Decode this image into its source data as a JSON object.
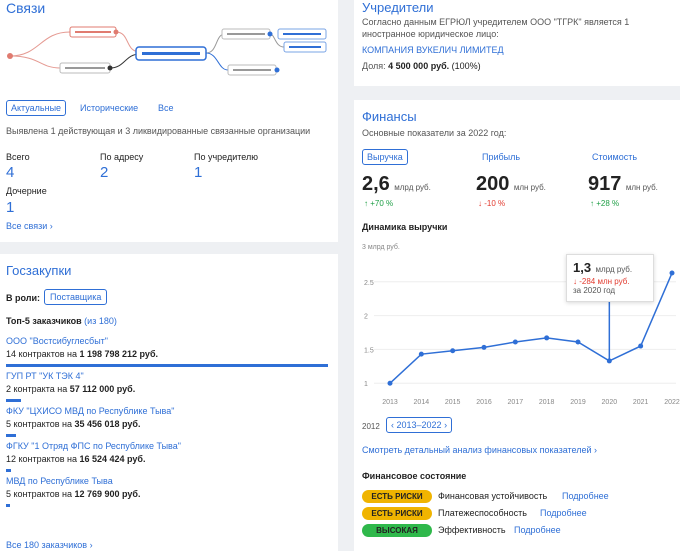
{
  "links": {
    "title": "Связи",
    "tabs": [
      "Актуальные",
      "Исторические",
      "Все"
    ],
    "summary": "Выявлена 1 действующая и 3 ликвидированные связанные организации",
    "stats": [
      {
        "label": "Всего",
        "value": "4"
      },
      {
        "label": "По адресу",
        "value": "2"
      },
      {
        "label": "По учредителю",
        "value": "1"
      },
      {
        "label": "Дочерние",
        "value": "1"
      }
    ],
    "all_link": "Все связи ›"
  },
  "founders": {
    "title": "Учредители",
    "text1": "Согласно данным ЕГРЮЛ учредителем ООО \"ТГРК\" является 1",
    "text2": "иностранное юридическое лицо:",
    "company": "КОМПАНИЯ ВУКЕЛИЧ ЛИМИТЕД",
    "share_label": "Доля:",
    "share_value": "4 500 000 руб.",
    "share_pct": "(100%)"
  },
  "finance": {
    "title": "Финансы",
    "subtitle": "Основные показатели за 2022 год:",
    "tabs": [
      "Выручка",
      "Прибыль",
      "Стоимость"
    ],
    "metrics": [
      {
        "value": "2,6",
        "unit": "млрд руб.",
        "delta": "↑ +70 %",
        "dir": "up"
      },
      {
        "value": "200",
        "unit": "млн руб.",
        "delta": "↓ -10 %",
        "dir": "down"
      },
      {
        "value": "917",
        "unit": "млн руб.",
        "delta": "↑ +28 %",
        "dir": "up"
      }
    ],
    "chart_title": "Динамика выручки",
    "tooltip_value": "1,3",
    "tooltip_unit": "млрд руб.",
    "tooltip_delta": "↓ -284 млн руб.",
    "tooltip_period": "за 2020 год",
    "range_prev": "2012",
    "range_label": "2013–2022",
    "details_link": "Смотреть детальный анализ финансовых показателей ›",
    "state_title": "Финансовое состояние",
    "states": [
      {
        "badge": "ЕСТЬ РИСКИ",
        "label": "Финансовая устойчивость",
        "more": "Подробнее",
        "color": "#f0b400"
      },
      {
        "badge": "ЕСТЬ РИСКИ",
        "label": "Платежеспособность",
        "more": "Подробнее",
        "color": "#f0b400"
      },
      {
        "badge": "ВЫСОКАЯ",
        "label": "Эффективность",
        "more": "Подробнее",
        "color": "#2fb84b"
      }
    ]
  },
  "chart_data": {
    "type": "line",
    "title": "Динамика выручки",
    "ylabel": "3 млрд руб.",
    "x": [
      "2013",
      "2014",
      "2015",
      "2016",
      "2017",
      "2018",
      "2019",
      "2020",
      "2021",
      "2022"
    ],
    "values": [
      1.0,
      1.43,
      1.48,
      1.53,
      1.61,
      1.67,
      1.61,
      1.33,
      1.55,
      2.63
    ],
    "yticks": [
      "1",
      "1.5",
      "2",
      "2.5"
    ],
    "ylim": [
      0.9,
      3.0
    ],
    "highlight_index": 7,
    "color": "#2f6fd6"
  },
  "procurement": {
    "title": "Госзакупки",
    "role_label": "В роли:",
    "role_value": "Поставщика",
    "top_label": "Топ-5 заказчиков",
    "top_of": "(из 180)",
    "customers": [
      {
        "name": "ООО \"Востсибуглесбыт\"",
        "contracts": "14 контрактов на",
        "amount": "1 198 798 212 руб.",
        "share": 1.0
      },
      {
        "name": "ГУП РТ \"УК ТЭК 4\"",
        "contracts": "2 контракта на",
        "amount": "57 112 000 руб.",
        "share": 0.048
      },
      {
        "name": "ФКУ \"ЦХИСО МВД по Республике Тыва\"",
        "contracts": "5 контрактов на",
        "amount": "35 456 018 руб.",
        "share": 0.03
      },
      {
        "name": "ФГКУ \"1 Отряд ФПС по Республике Тыва\"",
        "contracts": "12 контрактов на",
        "amount": "16 524 424 руб.",
        "share": 0.014
      },
      {
        "name": "МВД по Республике Тыва",
        "contracts": "5 контрактов на",
        "amount": "12 769 900 руб.",
        "share": 0.011
      }
    ],
    "all_link": "Все 180 заказчиков ›"
  }
}
